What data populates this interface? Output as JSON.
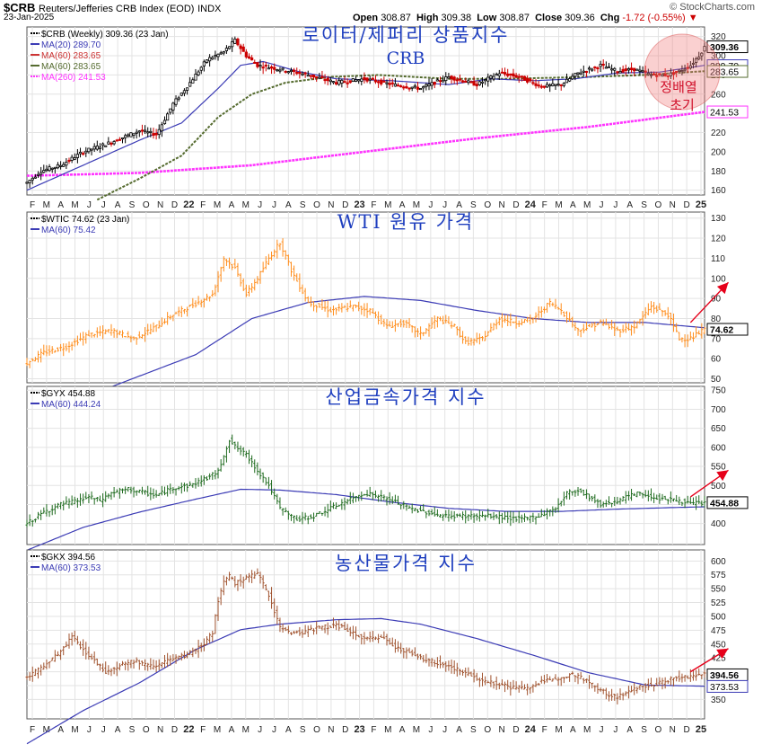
{
  "header": {
    "symbol": "$CRB",
    "name": "Reuters/Jefferies CRB Index (EOD)",
    "exchange": "INDX",
    "date": "23-Jan-2025",
    "watermark": "© StockCharts.com",
    "open_label": "Open",
    "open": "308.87",
    "high_label": "High",
    "high": "309.38",
    "low_label": "Low",
    "low": "308.87",
    "close_label": "Close",
    "close": "309.36",
    "chg_label": "Chg",
    "chg": "-1.72 (-0.55%)",
    "chg_arrow": "▼"
  },
  "x_axis": {
    "labels": [
      "F",
      "M",
      "A",
      "M",
      "J",
      "J",
      "A",
      "S",
      "O",
      "N",
      "D",
      "22",
      "F",
      "M",
      "A",
      "M",
      "J",
      "J",
      "A",
      "S",
      "O",
      "N",
      "D",
      "23",
      "F",
      "M",
      "A",
      "M",
      "J",
      "J",
      "A",
      "S",
      "O",
      "N",
      "D",
      "24",
      "F",
      "M",
      "A",
      "M",
      "J",
      "J",
      "A",
      "S",
      "O",
      "N",
      "D",
      "25"
    ]
  },
  "annotations": {
    "circle_text_line1": "정배열",
    "circle_text_line2": "초기"
  },
  "colors": {
    "up": "#000000",
    "down": "#cc0000",
    "ma20": "#3b3bb5",
    "ma60_red": "#cc3333",
    "ma60_green": "#556b2f",
    "ma260": "#ff33ff",
    "orange": "#ff8c1a",
    "green": "#1f6b1f",
    "brown": "#a0522d",
    "title_blue": "#1f3fbf",
    "arrow_red": "#e6001a"
  },
  "chart_data": [
    {
      "type": "line",
      "panel": "CRB",
      "title": "로이터/제퍼리 상품지수",
      "subtitle": "CRB",
      "legend": [
        {
          "text": "$CRB (Weekly) 309.36 (23 Jan)"
        },
        {
          "text": "MA(20) 289.70"
        },
        {
          "text": "MA(60) 283.65"
        },
        {
          "text": "MA(60) 283.65"
        },
        {
          "text": "MA(260) 241.53"
        }
      ],
      "ylim": [
        155,
        330
      ],
      "yticks": [
        160,
        180,
        200,
        220,
        240,
        260,
        280,
        300,
        320
      ],
      "price_tags": [
        {
          "text": "309.36",
          "value": 309.36
        },
        {
          "text": "289.70",
          "value": 289.7
        },
        {
          "text": "283.65",
          "value": 283.65
        },
        {
          "text": "241.53",
          "value": 241.53
        }
      ],
      "anchors": [
        [
          0,
          168
        ],
        [
          5,
          180
        ],
        [
          12,
          186
        ],
        [
          20,
          200
        ],
        [
          30,
          210
        ],
        [
          40,
          222
        ],
        [
          46,
          218
        ],
        [
          52,
          250
        ],
        [
          58,
          272
        ],
        [
          64,
          296
        ],
        [
          70,
          304
        ],
        [
          74,
          316
        ],
        [
          78,
          300
        ],
        [
          82,
          290
        ],
        [
          90,
          286
        ],
        [
          100,
          280
        ],
        [
          110,
          272
        ],
        [
          120,
          276
        ],
        [
          130,
          270
        ],
        [
          140,
          266
        ],
        [
          150,
          278
        ],
        [
          160,
          270
        ],
        [
          168,
          282
        ],
        [
          175,
          278
        ],
        [
          183,
          268
        ],
        [
          190,
          270
        ],
        [
          196,
          282
        ],
        [
          204,
          290
        ],
        [
          210,
          284
        ],
        [
          216,
          286
        ],
        [
          222,
          280
        ],
        [
          228,
          280
        ],
        [
          232,
          284
        ],
        [
          236,
          290
        ],
        [
          239,
          300
        ],
        [
          241,
          309
        ]
      ],
      "ma20_anchors": [
        [
          0,
          160
        ],
        [
          20,
          186
        ],
        [
          40,
          212
        ],
        [
          55,
          230
        ],
        [
          68,
          266
        ],
        [
          76,
          290
        ],
        [
          84,
          294
        ],
        [
          96,
          284
        ],
        [
          110,
          276
        ],
        [
          130,
          274
        ],
        [
          150,
          270
        ],
        [
          165,
          276
        ],
        [
          180,
          274
        ],
        [
          195,
          276
        ],
        [
          210,
          282
        ],
        [
          225,
          283
        ],
        [
          241,
          290
        ]
      ],
      "ma60_anchors": [
        [
          25,
          150
        ],
        [
          40,
          172
        ],
        [
          55,
          196
        ],
        [
          68,
          236
        ],
        [
          80,
          260
        ],
        [
          92,
          272
        ],
        [
          108,
          278
        ],
        [
          125,
          280
        ],
        [
          150,
          276
        ],
        [
          170,
          276
        ],
        [
          200,
          278
        ],
        [
          220,
          280
        ],
        [
          241,
          284
        ]
      ],
      "ma260_anchors": [
        [
          0,
          175
        ],
        [
          40,
          178
        ],
        [
          80,
          186
        ],
        [
          120,
          200
        ],
        [
          160,
          214
        ],
        [
          200,
          226
        ],
        [
          241,
          241.5
        ]
      ]
    },
    {
      "type": "line",
      "panel": "WTIC",
      "title": "WTI 원유 가격",
      "legend": [
        {
          "text": "$WTIC 74.62 (23 Jan)"
        },
        {
          "text": "MA(60) 75.42"
        }
      ],
      "ylim": [
        48,
        133
      ],
      "yticks": [
        50,
        60,
        70,
        80,
        90,
        100,
        110,
        120,
        130
      ],
      "price_tags": [
        {
          "text": "74.62",
          "value": 74.62
        }
      ],
      "anchors": [
        [
          0,
          58
        ],
        [
          6,
          63
        ],
        [
          14,
          66
        ],
        [
          22,
          72
        ],
        [
          30,
          74
        ],
        [
          38,
          70
        ],
        [
          46,
          76
        ],
        [
          52,
          82
        ],
        [
          58,
          86
        ],
        [
          66,
          92
        ],
        [
          70,
          110
        ],
        [
          74,
          105
        ],
        [
          78,
          92
        ],
        [
          82,
          100
        ],
        [
          86,
          110
        ],
        [
          90,
          118
        ],
        [
          94,
          104
        ],
        [
          100,
          88
        ],
        [
          108,
          84
        ],
        [
          116,
          86
        ],
        [
          122,
          84
        ],
        [
          128,
          76
        ],
        [
          134,
          78
        ],
        [
          140,
          72
        ],
        [
          146,
          80
        ],
        [
          152,
          76
        ],
        [
          156,
          68
        ],
        [
          162,
          70
        ],
        [
          168,
          80
        ],
        [
          174,
          78
        ],
        [
          180,
          80
        ],
        [
          186,
          88
        ],
        [
          190,
          84
        ],
        [
          196,
          74
        ],
        [
          204,
          78
        ],
        [
          210,
          74
        ],
        [
          216,
          76
        ],
        [
          222,
          86
        ],
        [
          228,
          82
        ],
        [
          232,
          70
        ],
        [
          236,
          70
        ],
        [
          241,
          74.6
        ]
      ],
      "ma_anchors": [
        [
          0,
          40
        ],
        [
          30,
          46
        ],
        [
          60,
          62
        ],
        [
          80,
          80
        ],
        [
          100,
          88
        ],
        [
          120,
          91
        ],
        [
          140,
          89
        ],
        [
          160,
          84
        ],
        [
          180,
          80
        ],
        [
          200,
          78
        ],
        [
          220,
          78
        ],
        [
          241,
          75.4
        ]
      ],
      "arrow": {
        "from": [
          236,
          78
        ],
        "to": [
          245,
          98
        ]
      }
    },
    {
      "type": "line",
      "panel": "GYX",
      "title": "산업금속가격 지수",
      "legend": [
        {
          "text": "$GYX 454.88"
        },
        {
          "text": "MA(60) 444.24"
        }
      ],
      "ylim": [
        345,
        760
      ],
      "yticks": [
        400,
        450,
        500,
        550,
        600,
        650,
        700,
        750
      ],
      "price_tags": [
        {
          "text": "454.88",
          "value": 454.88
        }
      ],
      "anchors": [
        [
          0,
          400
        ],
        [
          6,
          430
        ],
        [
          12,
          450
        ],
        [
          18,
          460
        ],
        [
          22,
          470
        ],
        [
          26,
          460
        ],
        [
          30,
          480
        ],
        [
          36,
          490
        ],
        [
          40,
          484
        ],
        [
          46,
          474
        ],
        [
          52,
          494
        ],
        [
          58,
          500
        ],
        [
          64,
          520
        ],
        [
          68,
          536
        ],
        [
          70,
          580
        ],
        [
          72,
          620
        ],
        [
          74,
          602
        ],
        [
          78,
          580
        ],
        [
          82,
          540
        ],
        [
          86,
          500
        ],
        [
          90,
          440
        ],
        [
          96,
          410
        ],
        [
          102,
          420
        ],
        [
          108,
          440
        ],
        [
          114,
          460
        ],
        [
          120,
          480
        ],
        [
          124,
          474
        ],
        [
          130,
          460
        ],
        [
          136,
          440
        ],
        [
          142,
          430
        ],
        [
          148,
          420
        ],
        [
          152,
          420
        ],
        [
          158,
          420
        ],
        [
          164,
          420
        ],
        [
          170,
          416
        ],
        [
          176,
          412
        ],
        [
          182,
          420
        ],
        [
          188,
          440
        ],
        [
          192,
          480
        ],
        [
          196,
          488
        ],
        [
          200,
          470
        ],
        [
          204,
          450
        ],
        [
          210,
          460
        ],
        [
          214,
          472
        ],
        [
          218,
          480
        ],
        [
          222,
          470
        ],
        [
          226,
          466
        ],
        [
          232,
          460
        ],
        [
          236,
          452
        ],
        [
          241,
          455
        ]
      ],
      "ma_anchors": [
        [
          0,
          330
        ],
        [
          20,
          390
        ],
        [
          40,
          430
        ],
        [
          60,
          464
        ],
        [
          76,
          490
        ],
        [
          90,
          488
        ],
        [
          110,
          476
        ],
        [
          130,
          456
        ],
        [
          150,
          440
        ],
        [
          170,
          432
        ],
        [
          190,
          432
        ],
        [
          210,
          438
        ],
        [
          230,
          442
        ],
        [
          241,
          444
        ]
      ],
      "arrow": {
        "from": [
          236,
          470
        ],
        "to": [
          245,
          540
        ]
      }
    },
    {
      "type": "line",
      "panel": "GKX",
      "title": "농산물가격 지수",
      "legend": [
        {
          "text": "$GKX 394.56"
        },
        {
          "text": "MA(60) 373.53"
        }
      ],
      "ylim": [
        315,
        620
      ],
      "yticks": [
        350,
        375,
        400,
        425,
        450,
        475,
        500,
        525,
        550,
        575,
        600
      ],
      "price_tags": [
        {
          "text": "394.56",
          "value": 394.56
        },
        {
          "text": "373.53",
          "value": 373.53
        }
      ],
      "anchors": [
        [
          0,
          390
        ],
        [
          6,
          410
        ],
        [
          12,
          436
        ],
        [
          16,
          464
        ],
        [
          20,
          440
        ],
        [
          24,
          420
        ],
        [
          28,
          400
        ],
        [
          34,
          414
        ],
        [
          38,
          420
        ],
        [
          44,
          410
        ],
        [
          50,
          420
        ],
        [
          56,
          428
        ],
        [
          62,
          446
        ],
        [
          66,
          470
        ],
        [
          68,
          530
        ],
        [
          70,
          560
        ],
        [
          72,
          572
        ],
        [
          74,
          560
        ],
        [
          78,
          570
        ],
        [
          82,
          576
        ],
        [
          86,
          540
        ],
        [
          88,
          510
        ],
        [
          90,
          480
        ],
        [
          94,
          470
        ],
        [
          98,
          472
        ],
        [
          104,
          480
        ],
        [
          110,
          484
        ],
        [
          116,
          470
        ],
        [
          120,
          458
        ],
        [
          126,
          464
        ],
        [
          130,
          448
        ],
        [
          136,
          434
        ],
        [
          142,
          420
        ],
        [
          148,
          414
        ],
        [
          154,
          402
        ],
        [
          160,
          388
        ],
        [
          166,
          380
        ],
        [
          172,
          372
        ],
        [
          178,
          370
        ],
        [
          182,
          380
        ],
        [
          188,
          388
        ],
        [
          194,
          396
        ],
        [
          198,
          386
        ],
        [
          202,
          374
        ],
        [
          206,
          360
        ],
        [
          210,
          354
        ],
        [
          214,
          364
        ],
        [
          218,
          374
        ],
        [
          224,
          378
        ],
        [
          230,
          388
        ],
        [
          236,
          392
        ],
        [
          241,
          395
        ]
      ],
      "ma_anchors": [
        [
          0,
          270
        ],
        [
          20,
          330
        ],
        [
          40,
          380
        ],
        [
          60,
          440
        ],
        [
          76,
          476
        ],
        [
          90,
          486
        ],
        [
          110,
          494
        ],
        [
          126,
          496
        ],
        [
          140,
          486
        ],
        [
          160,
          460
        ],
        [
          180,
          430
        ],
        [
          200,
          398
        ],
        [
          220,
          376
        ],
        [
          241,
          374
        ]
      ],
      "arrow": {
        "from": [
          236,
          400
        ],
        "to": [
          245,
          442
        ]
      }
    }
  ]
}
